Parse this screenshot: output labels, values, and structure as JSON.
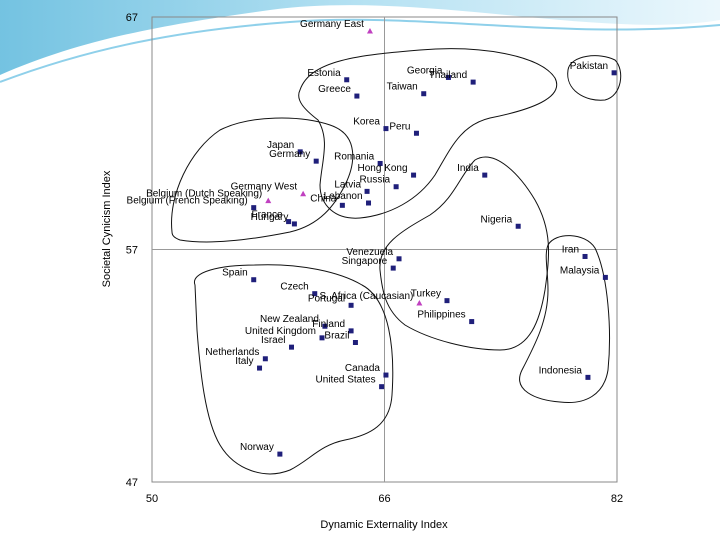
{
  "chart_data": {
    "type": "scatter",
    "title": "",
    "xlabel": "Dynamic Externality Index",
    "ylabel": "Societal Cynicism Index",
    "xlim": [
      50,
      82
    ],
    "ylim": [
      47,
      67
    ],
    "x_ticks": [
      "50",
      "66",
      "82"
    ],
    "y_ticks": [
      "47",
      "57",
      "67"
    ],
    "reference_lines": {
      "x": 66,
      "y": 57
    },
    "grid": false,
    "marker_colors": {
      "square": "#1f1f7a",
      "triangle": "#c040c0"
    },
    "points": [
      {
        "label": "Germany East",
        "x": 65.0,
        "y": 66.4,
        "marker": "triangle"
      },
      {
        "label": "Estonia",
        "x": 63.4,
        "y": 64.3,
        "marker": "square"
      },
      {
        "label": "Greece",
        "x": 64.1,
        "y": 63.6,
        "marker": "square"
      },
      {
        "label": "Georgia",
        "x": 70.4,
        "y": 64.4,
        "marker": "square"
      },
      {
        "label": "Taiwan",
        "x": 68.7,
        "y": 63.7,
        "marker": "square"
      },
      {
        "label": "Thailand",
        "x": 72.1,
        "y": 64.2,
        "marker": "square"
      },
      {
        "label": "Pakistan",
        "x": 81.8,
        "y": 64.6,
        "marker": "square"
      },
      {
        "label": "Korea",
        "x": 66.1,
        "y": 62.2,
        "marker": "square"
      },
      {
        "label": "Peru",
        "x": 68.2,
        "y": 62.0,
        "marker": "square"
      },
      {
        "label": "Japan",
        "x": 60.2,
        "y": 61.2,
        "marker": "square"
      },
      {
        "label": "Germany",
        "x": 61.3,
        "y": 60.8,
        "marker": "square"
      },
      {
        "label": "Romania",
        "x": 65.7,
        "y": 60.7,
        "marker": "square"
      },
      {
        "label": "Hong Kong",
        "x": 68.0,
        "y": 60.2,
        "marker": "square"
      },
      {
        "label": "India",
        "x": 72.9,
        "y": 60.2,
        "marker": "square"
      },
      {
        "label": "Belgium (Dutch Speaking)",
        "x": 58.0,
        "y": 59.1,
        "marker": "triangle"
      },
      {
        "label": "Germany West",
        "x": 60.4,
        "y": 59.4,
        "marker": "triangle"
      },
      {
        "label": "Latvia",
        "x": 64.8,
        "y": 59.5,
        "marker": "square"
      },
      {
        "label": "Russia",
        "x": 66.8,
        "y": 59.7,
        "marker": "square"
      },
      {
        "label": "Lebanon",
        "x": 64.9,
        "y": 59.0,
        "marker": "square"
      },
      {
        "label": "China",
        "x": 63.1,
        "y": 58.9,
        "marker": "square"
      },
      {
        "label": "Belgium (French Speaking)",
        "x": 57.0,
        "y": 58.8,
        "marker": "square"
      },
      {
        "label": "France",
        "x": 59.4,
        "y": 58.2,
        "marker": "square"
      },
      {
        "label": "Hungary",
        "x": 59.8,
        "y": 58.1,
        "marker": "square"
      },
      {
        "label": "Nigeria",
        "x": 75.2,
        "y": 58.0,
        "marker": "square"
      },
      {
        "label": "Venezuela",
        "x": 67.0,
        "y": 56.6,
        "marker": "square"
      },
      {
        "label": "Singapore",
        "x": 66.6,
        "y": 56.2,
        "marker": "square"
      },
      {
        "label": "Iran",
        "x": 79.8,
        "y": 56.7,
        "marker": "square"
      },
      {
        "label": "Malaysia",
        "x": 81.2,
        "y": 55.8,
        "marker": "square"
      },
      {
        "label": "Spain",
        "x": 57.0,
        "y": 55.7,
        "marker": "square"
      },
      {
        "label": "Czech",
        "x": 61.2,
        "y": 55.1,
        "marker": "square"
      },
      {
        "label": "Portugal",
        "x": 63.7,
        "y": 54.6,
        "marker": "square"
      },
      {
        "label": "Turkey",
        "x": 70.3,
        "y": 54.8,
        "marker": "square"
      },
      {
        "label": "S. Africa (Caucasian)",
        "x": 68.4,
        "y": 54.7,
        "marker": "triangle"
      },
      {
        "label": "New Zealand",
        "x": 61.9,
        "y": 53.7,
        "marker": "square"
      },
      {
        "label": "Finland",
        "x": 63.7,
        "y": 53.5,
        "marker": "square"
      },
      {
        "label": "United Kingdom",
        "x": 61.7,
        "y": 53.2,
        "marker": "square"
      },
      {
        "label": "Brazil",
        "x": 64.0,
        "y": 53.0,
        "marker": "square"
      },
      {
        "label": "Israel",
        "x": 59.6,
        "y": 52.8,
        "marker": "square"
      },
      {
        "label": "Philippines",
        "x": 72.0,
        "y": 53.9,
        "marker": "square"
      },
      {
        "label": "Netherlands",
        "x": 57.8,
        "y": 52.3,
        "marker": "square"
      },
      {
        "label": "Italy",
        "x": 57.4,
        "y": 51.9,
        "marker": "square"
      },
      {
        "label": "Canada",
        "x": 66.1,
        "y": 51.6,
        "marker": "square"
      },
      {
        "label": "United States",
        "x": 65.8,
        "y": 51.1,
        "marker": "square"
      },
      {
        "label": "Indonesia",
        "x": 80.0,
        "y": 51.5,
        "marker": "square"
      },
      {
        "label": "Norway",
        "x": 58.8,
        "y": 48.2,
        "marker": "square"
      }
    ]
  }
}
